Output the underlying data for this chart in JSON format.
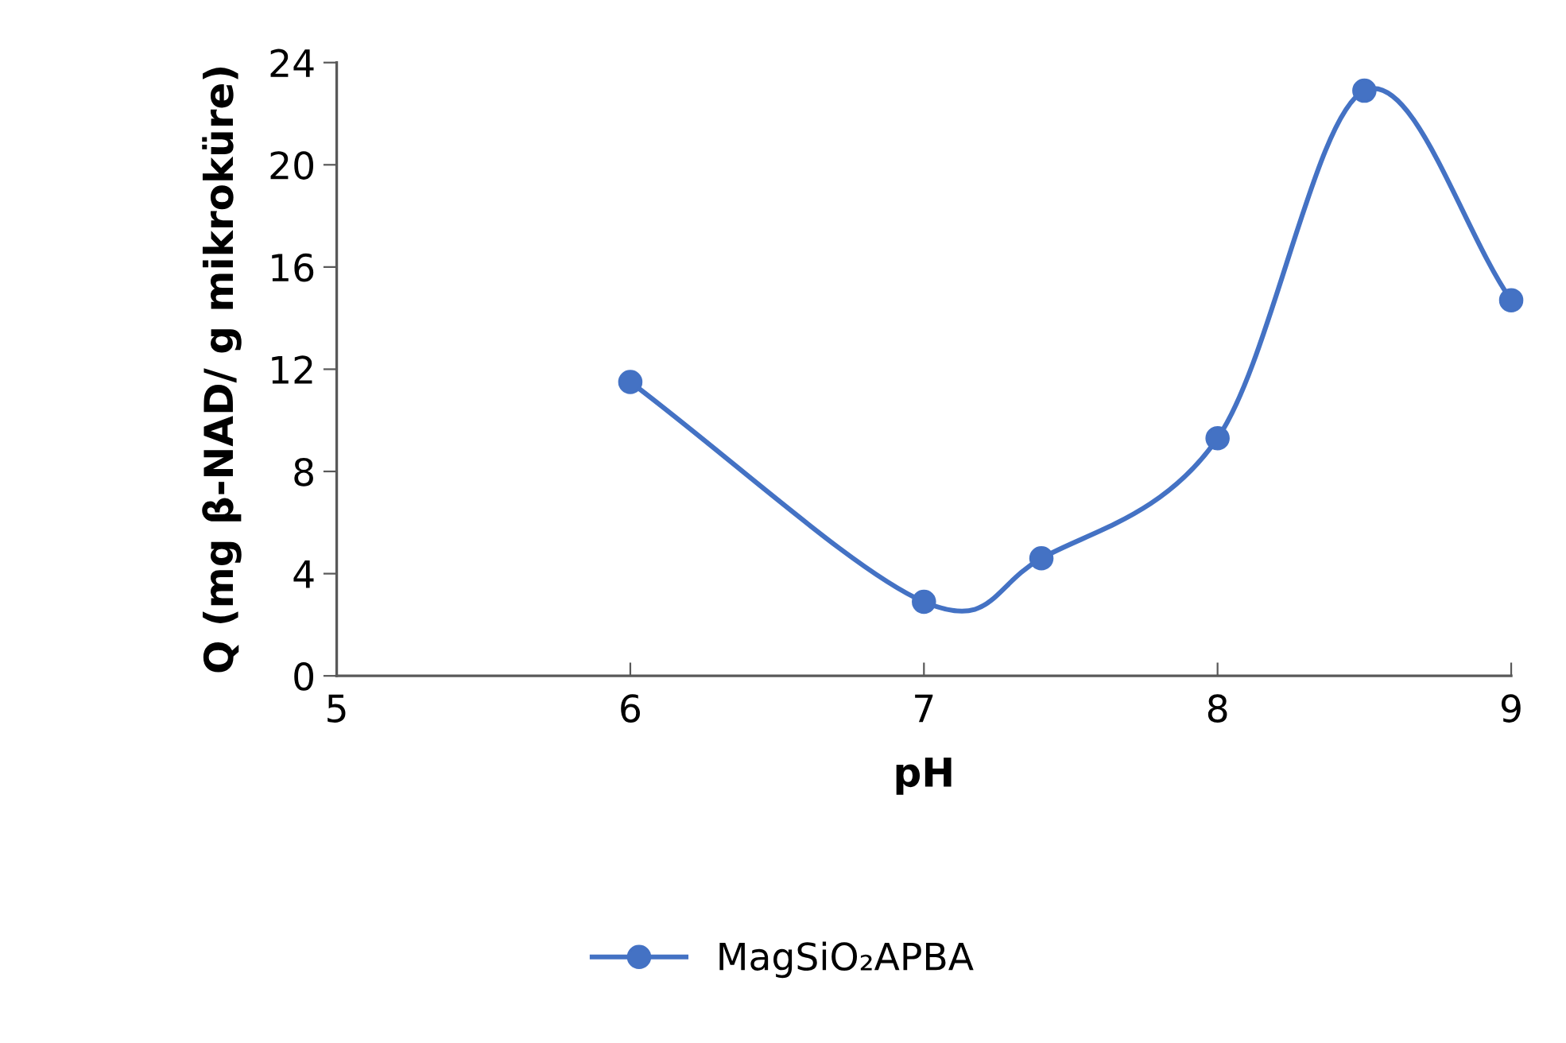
{
  "chart_data": {
    "type": "line",
    "xlabel": "pH",
    "ylabel": "Q (mg β-NAD/ g mikroküre)",
    "x": [
      6,
      7,
      7.4,
      8,
      8.5,
      9
    ],
    "series": [
      {
        "name": "MagSiO₂APBA",
        "color": "#4472c4",
        "values": [
          11.5,
          2.9,
          4.6,
          9.3,
          22.9,
          14.7
        ]
      }
    ],
    "xlim": [
      5,
      9
    ],
    "xticks": [
      5,
      6,
      7,
      8,
      9
    ],
    "ylim": [
      0,
      24
    ],
    "yticks": [
      0,
      4,
      8,
      12,
      16,
      20,
      24
    ],
    "grid": false,
    "legend": "bottom",
    "marker": "circle",
    "line_style": "solid"
  }
}
